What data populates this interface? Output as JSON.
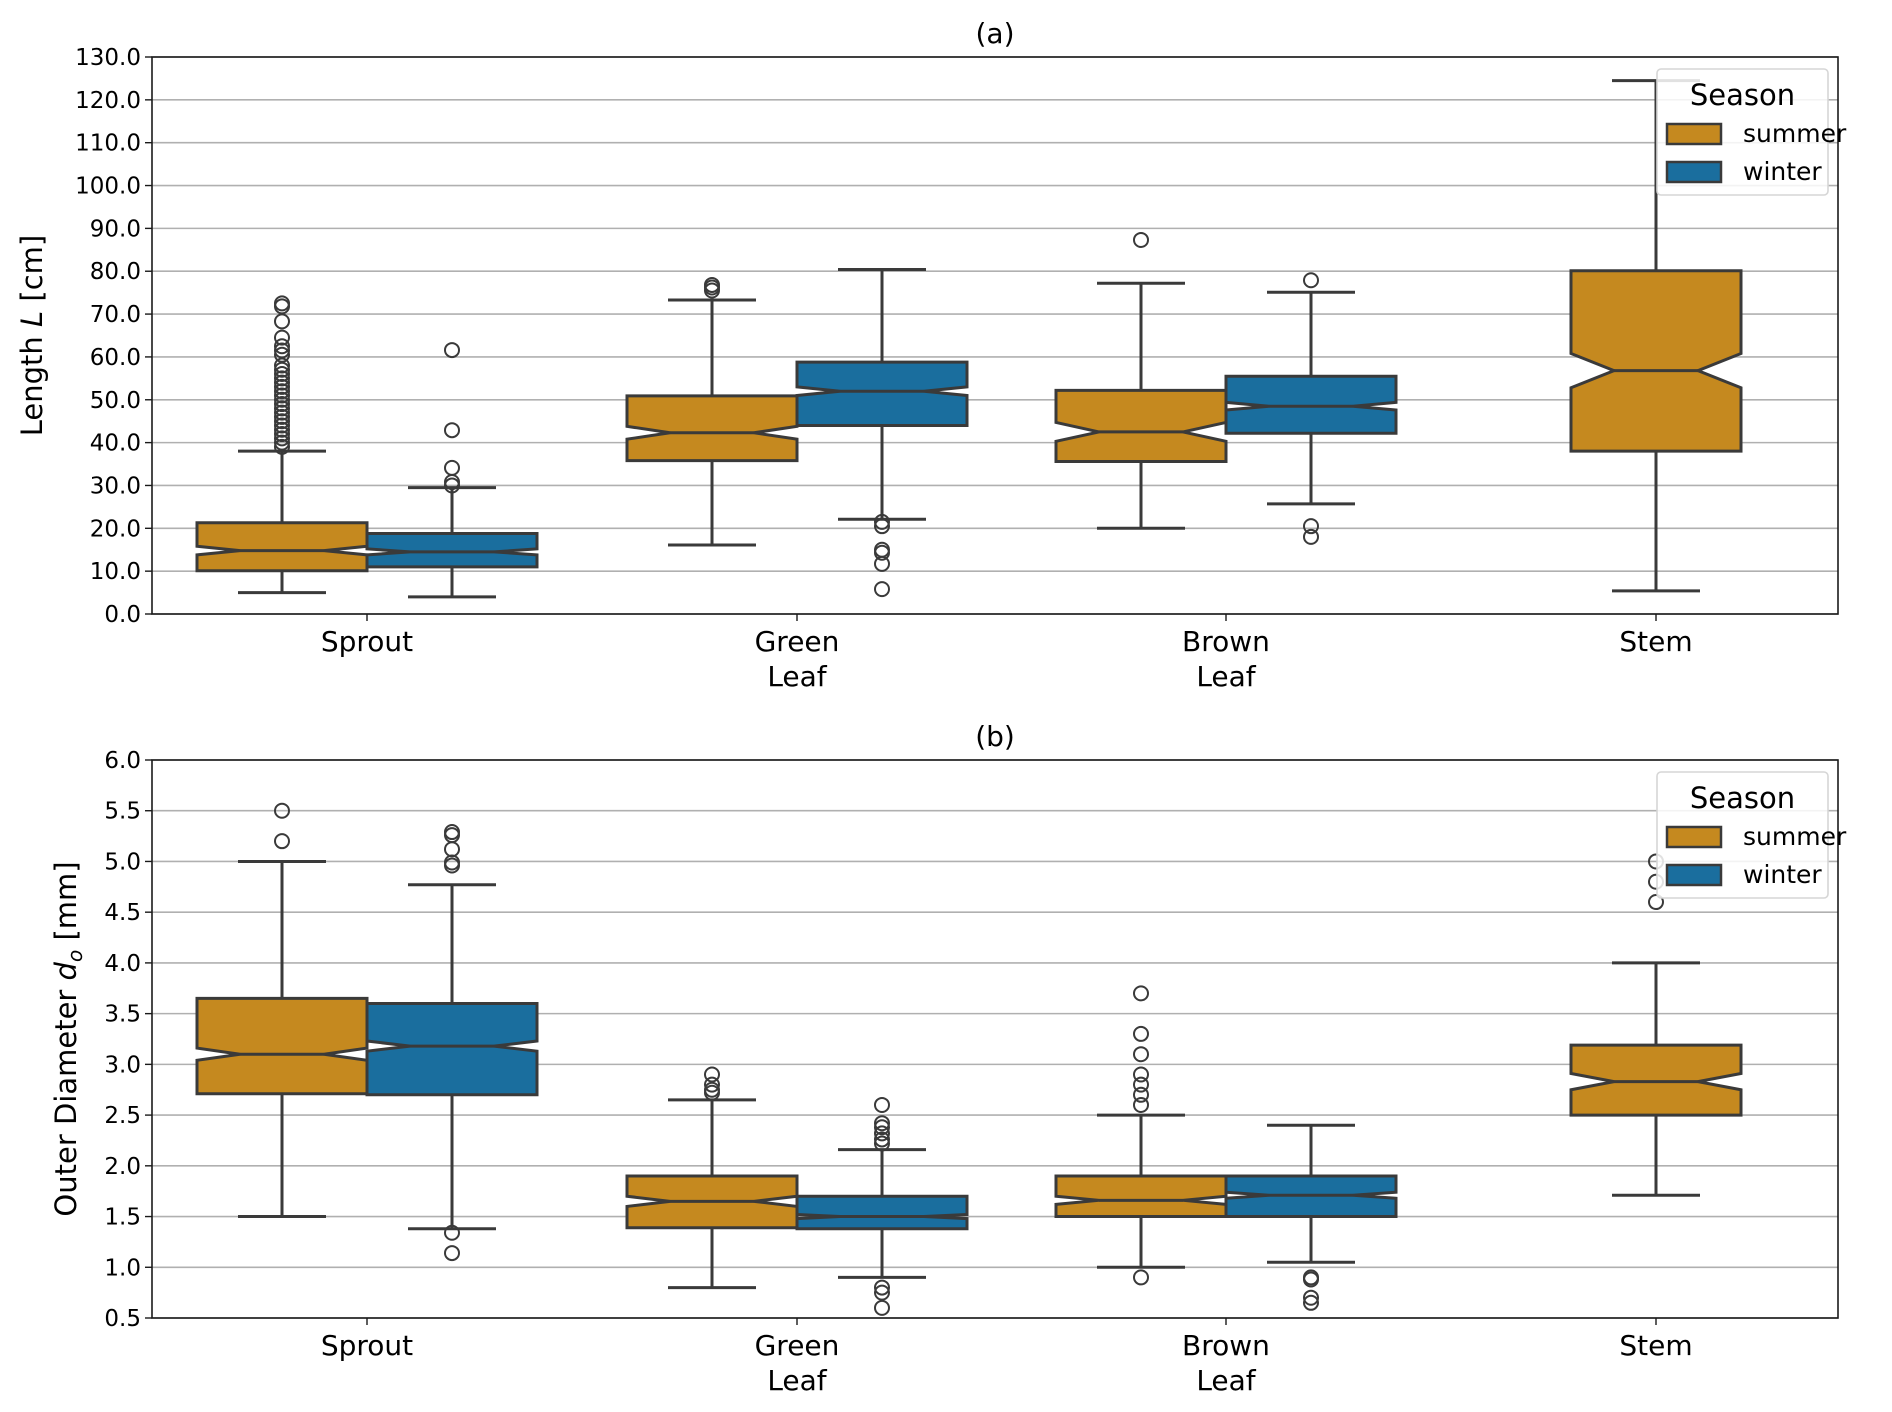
{
  "chart_data": [
    {
      "type": "box",
      "title": "(a)",
      "ylabel_prefix": "Length ",
      "ylabel_var": "L",
      "ylabel_suffix": " [cm]",
      "ylim": [
        0,
        130
      ],
      "yticks": [
        "0.0",
        "10.0",
        "20.0",
        "30.0",
        "40.0",
        "50.0",
        "60.0",
        "70.0",
        "80.0",
        "90.0",
        "100.0",
        "110.0",
        "120.0",
        "130.0"
      ],
      "ytick_values": [
        0,
        10,
        20,
        30,
        40,
        50,
        60,
        70,
        80,
        90,
        100,
        110,
        120,
        130
      ],
      "grid": "horizontal",
      "categories": [
        [
          "Sprout"
        ],
        [
          "Green",
          "Leaf"
        ],
        [
          "Brown",
          "Leaf"
        ],
        [
          "Stem"
        ]
      ],
      "legend": {
        "title": "Season",
        "entries": [
          "summer",
          "winter"
        ],
        "placement": "top-right"
      },
      "series": [
        {
          "name": "summer",
          "boxes": [
            {
              "category": "Sprout",
              "whisker_low": 5.0,
              "q1": 10.1,
              "median": 14.8,
              "q3": 21.3,
              "whisker_high": 38.0,
              "notch": [
                13.8,
                15.8
              ],
              "outliers": [
                39,
                40,
                41,
                42,
                43,
                44,
                45,
                46,
                47,
                48,
                49,
                50,
                51,
                52,
                53,
                54,
                55,
                56,
                57,
                58,
                60.5,
                61.5,
                62.5,
                64.5,
                68.3,
                71.8,
                72.5
              ]
            },
            {
              "category": "Green Leaf",
              "whisker_low": 16.1,
              "q1": 35.8,
              "median": 42.3,
              "q3": 50.9,
              "whisker_high": 73.3,
              "notch": [
                40.8,
                43.8
              ],
              "outliers": [
                75.5,
                76.2,
                76.8
              ]
            },
            {
              "category": "Brown Leaf",
              "whisker_low": 20.0,
              "q1": 35.6,
              "median": 42.5,
              "q3": 52.2,
              "whisker_high": 77.2,
              "notch": [
                40.3,
                44.7
              ],
              "outliers": [
                87.3
              ]
            },
            {
              "category": "Stem",
              "whisker_low": 5.4,
              "q1": 38.0,
              "median": 56.8,
              "q3": 80.1,
              "whisker_high": 124.5,
              "notch": [
                52.8,
                60.8
              ],
              "outliers": []
            }
          ]
        },
        {
          "name": "winter",
          "boxes": [
            {
              "category": "Sprout",
              "whisker_low": 4.0,
              "q1": 11.0,
              "median": 14.5,
              "q3": 18.8,
              "whisker_high": 29.5,
              "notch": [
                13.8,
                15.2
              ],
              "outliers": [
                30.0,
                30.8,
                34.1,
                42.9,
                61.6
              ]
            },
            {
              "category": "Green Leaf",
              "whisker_low": 22.1,
              "q1": 44.0,
              "median": 52.0,
              "q3": 58.8,
              "whisker_high": 80.4,
              "notch": [
                51.0,
                53.0
              ],
              "outliers": [
                5.8,
                11.7,
                14.3,
                15.0,
                20.5,
                21.5
              ]
            },
            {
              "category": "Brown Leaf",
              "whisker_low": 25.7,
              "q1": 42.2,
              "median": 48.5,
              "q3": 55.5,
              "whisker_high": 75.1,
              "notch": [
                47.6,
                49.4
              ],
              "outliers": [
                18.0,
                20.5,
                77.9
              ]
            }
          ]
        }
      ]
    },
    {
      "type": "box",
      "title": "(b)",
      "ylabel_prefix": "Outer Diameter ",
      "ylabel_var": "d",
      "ylabel_sub": "o",
      "ylabel_suffix": " [mm]",
      "ylim": [
        0.5,
        6.0
      ],
      "yticks": [
        "0.5",
        "1.0",
        "1.5",
        "2.0",
        "2.5",
        "3.0",
        "3.5",
        "4.0",
        "4.5",
        "5.0",
        "5.5",
        "6.0"
      ],
      "ytick_values": [
        0.5,
        1.0,
        1.5,
        2.0,
        2.5,
        3.0,
        3.5,
        4.0,
        4.5,
        5.0,
        5.5,
        6.0
      ],
      "grid": "horizontal",
      "categories": [
        [
          "Sprout"
        ],
        [
          "Green",
          "Leaf"
        ],
        [
          "Brown",
          "Leaf"
        ],
        [
          "Stem"
        ]
      ],
      "legend": {
        "title": "Season",
        "entries": [
          "summer",
          "winter"
        ],
        "placement": "top-right"
      },
      "series": [
        {
          "name": "summer",
          "boxes": [
            {
              "category": "Sprout",
              "whisker_low": 1.5,
              "q1": 2.71,
              "median": 3.1,
              "q3": 3.65,
              "whisker_high": 5.0,
              "notch": [
                3.04,
                3.16
              ],
              "outliers": [
                5.2,
                5.5
              ]
            },
            {
              "category": "Green Leaf",
              "whisker_low": 0.8,
              "q1": 1.39,
              "median": 1.65,
              "q3": 1.9,
              "whisker_high": 2.65,
              "notch": [
                1.6,
                1.7
              ],
              "outliers": [
                2.72,
                2.75,
                2.8,
                2.9
              ]
            },
            {
              "category": "Brown Leaf",
              "whisker_low": 1.0,
              "q1": 1.5,
              "median": 1.66,
              "q3": 1.9,
              "whisker_high": 2.5,
              "notch": [
                1.62,
                1.7
              ],
              "outliers": [
                0.9,
                2.6,
                2.7,
                2.8,
                2.9,
                3.1,
                3.3,
                3.7
              ]
            },
            {
              "category": "Stem",
              "whisker_low": 1.71,
              "q1": 2.5,
              "median": 2.83,
              "q3": 3.19,
              "whisker_high": 4.0,
              "notch": [
                2.75,
                2.91
              ],
              "outliers": [
                4.6,
                4.8,
                5.0
              ]
            }
          ]
        },
        {
          "name": "winter",
          "boxes": [
            {
              "category": "Sprout",
              "whisker_low": 1.38,
              "q1": 2.7,
              "median": 3.18,
              "q3": 3.6,
              "whisker_high": 4.77,
              "notch": [
                3.13,
                3.23
              ],
              "outliers": [
                1.14,
                1.34,
                4.96,
                4.99,
                5.12,
                5.26,
                5.29
              ]
            },
            {
              "category": "Green Leaf",
              "whisker_low": 0.9,
              "q1": 1.38,
              "median": 1.5,
              "q3": 1.7,
              "whisker_high": 2.16,
              "notch": [
                1.48,
                1.52
              ],
              "outliers": [
                0.6,
                0.75,
                0.8,
                2.22,
                2.26,
                2.32,
                2.38,
                2.42,
                2.6
              ]
            },
            {
              "category": "Brown Leaf",
              "whisker_low": 1.05,
              "q1": 1.5,
              "median": 1.71,
              "q3": 1.9,
              "whisker_high": 2.4,
              "notch": [
                1.68,
                1.74
              ],
              "outliers": [
                0.65,
                0.7,
                0.88,
                0.9
              ]
            }
          ]
        }
      ]
    }
  ],
  "colors": {
    "summer": "#c5891f",
    "winter": "#1a6e9e",
    "edge": "#3a3a3a",
    "grid": "#b0b0b0",
    "axis": "#1a1a1a"
  }
}
